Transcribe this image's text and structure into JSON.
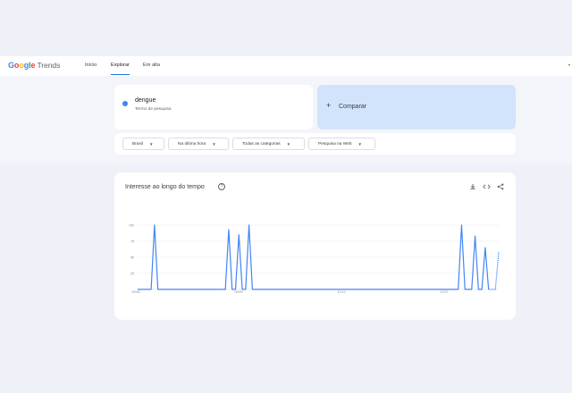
{
  "header": {
    "logo_google": [
      "G",
      "o",
      "o",
      "g",
      "l",
      "e"
    ],
    "logo_colors": [
      "#4285f4",
      "#ea4335",
      "#fbbc05",
      "#4285f4",
      "#34a853",
      "#ea4335"
    ],
    "logo_trends": "Trends",
    "nav": [
      {
        "label": "Início",
        "active": false
      },
      {
        "label": "Explorar",
        "active": true
      },
      {
        "label": "Em alta",
        "active": false
      }
    ]
  },
  "term": {
    "name": "dengue",
    "subtitle": "Termo de pesquisa",
    "color": "#4285f4"
  },
  "compare": {
    "label": "Comparar"
  },
  "filters": [
    {
      "label": "Brasil"
    },
    {
      "label": "Na última hora"
    },
    {
      "label": "Todas as categorias"
    },
    {
      "label": "Pesquisa na Web"
    }
  ],
  "chart_card": {
    "title": "Interesse ao longo do tempo",
    "icons": [
      "download-icon",
      "embed-icon",
      "share-icon"
    ]
  },
  "chart_data": {
    "type": "line",
    "series": [
      {
        "name": "dengue",
        "color": "#4285f4",
        "values": [
          0,
          0,
          0,
          0,
          0,
          100,
          0,
          0,
          0,
          0,
          0,
          0,
          0,
          0,
          0,
          0,
          0,
          0,
          0,
          0,
          0,
          0,
          0,
          0,
          0,
          0,
          0,
          93,
          0,
          0,
          85,
          0,
          0,
          100,
          0,
          0,
          0,
          0,
          0,
          0,
          0,
          0,
          0,
          0,
          0,
          0,
          0,
          0,
          0,
          0,
          0,
          0,
          0,
          0,
          0,
          0,
          0,
          0,
          0,
          0,
          0,
          0,
          0,
          0,
          0,
          0,
          0,
          0,
          0,
          0,
          0,
          0,
          0,
          0,
          0,
          0,
          0,
          0,
          0,
          0,
          0,
          0,
          0,
          0,
          0,
          0,
          0,
          0,
          0,
          0,
          0,
          0,
          0,
          0,
          0,
          0,
          100,
          0,
          0,
          0,
          83,
          0,
          0,
          65,
          0,
          0,
          0,
          58
        ],
        "partial_from_index": 104
      }
    ],
    "y_ticks": [
      "100",
      "75",
      "50",
      "25"
    ],
    "x_tick_labels": [
      "09:45",
      "09:59",
      "10:13",
      "10:27"
    ],
    "ylim": [
      0,
      100
    ],
    "grid": true
  }
}
